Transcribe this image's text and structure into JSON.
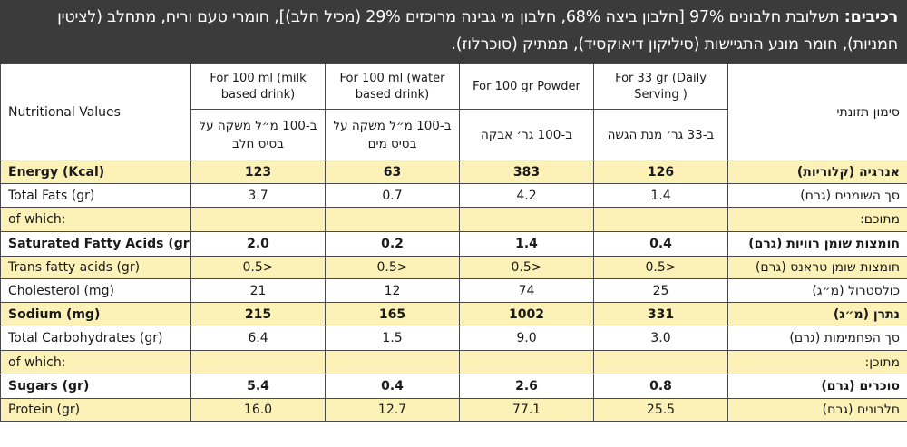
{
  "ingredients": {
    "label": "רכיבים:",
    "text": " תשלובת חלבונים 97% [חלבון ביצה 68%, חלבון מי גבינה מרוכזים 29% (מכיל חלב)], חומרי טעם וריח, מתחלב (לציטין חמניות), חומר מונע התגיישות (סיליקון דיאוקסיד), ממתיק (סוכרלוז)."
  },
  "table": {
    "corner_en": "Nutritional Values",
    "corner_he": "סימון תזונתי",
    "columns": [
      {
        "en": "For 100 ml (milk based drink)",
        "he": "ב-100 מ״ל משקה על בסיס חלב"
      },
      {
        "en": "For 100 ml (water based drink)",
        "he": "ב-100 מ״ל משקה על בסיס מים"
      },
      {
        "en": "For 100 gr Powder",
        "he": "ב-100 גר׳ אבקה"
      },
      {
        "en": "For 33 gr (Daily Serving )",
        "he": "ב-33 גר׳ מנת הגשה"
      }
    ],
    "rows": [
      {
        "en": "Energy (Kcal)",
        "he": "אנרגיה (קלוריות)",
        "values": [
          "123",
          "63",
          "383",
          "126"
        ],
        "style": "hl bold"
      },
      {
        "en": "Total Fats (gr)",
        "he": "סך השומנים (גרם)",
        "values": [
          "3.7",
          "0.7",
          "4.2",
          "1.4"
        ],
        "style": ""
      },
      {
        "en": "of which:",
        "he": "מתוכם:",
        "values": [
          "",
          "",
          "",
          ""
        ],
        "style": "hl"
      },
      {
        "en": "Saturated Fatty Acids (gr)",
        "he": "חומצות שומן רוויות (גרם)",
        "values": [
          "2.0",
          "0.2",
          "1.4",
          "0.4"
        ],
        "style": "bold"
      },
      {
        "en": "Trans fatty acids (gr)",
        "he": "חומצות שומן טראנס (גרם)",
        "values": [
          "0.5>",
          "0.5>",
          "0.5>",
          "0.5>"
        ],
        "style": "hl"
      },
      {
        "en": "Cholesterol (mg)",
        "he": "כולסטרול (מ״ג)",
        "values": [
          "21",
          "12",
          "74",
          "25"
        ],
        "style": ""
      },
      {
        "en": "Sodium (mg)",
        "he": "נתרן (מ״ג)",
        "values": [
          "215",
          "165",
          "1002",
          "331"
        ],
        "style": "hl bold"
      },
      {
        "en": "Total Carbohydrates (gr)",
        "he": "סך הפחמימות (גרם)",
        "values": [
          "6.4",
          "1.5",
          "9.0",
          "3.0"
        ],
        "style": ""
      },
      {
        "en": "of which:",
        "he": "מתוכן:",
        "values": [
          "",
          "",
          "",
          ""
        ],
        "style": "hl"
      },
      {
        "en": "Sugars (gr)",
        "he": "סוכרים (גרם)",
        "values": [
          "5.4",
          "0.4",
          "2.6",
          "0.8"
        ],
        "style": "bold"
      },
      {
        "en": "Protein (gr)",
        "he": "חלבונים (גרם)",
        "values": [
          "16.0",
          "12.7",
          "77.1",
          "25.5"
        ],
        "style": "hl"
      }
    ]
  }
}
